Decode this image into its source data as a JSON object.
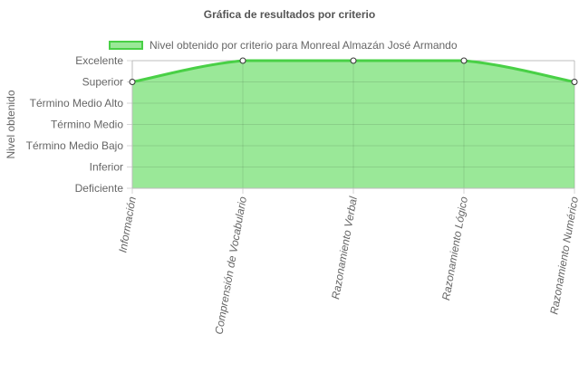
{
  "chart_data": {
    "type": "area",
    "title": "Gráfica de resultados por criterio",
    "ylabel": "Nivel obtenido",
    "xlabel": "",
    "categories": [
      "Información",
      "Comprensión de Vocabulario",
      "Razonamiento Verbal",
      "Razonamiento Lógico",
      "Razonamiento Numérico"
    ],
    "y_levels": [
      "Deficiente",
      "Inferior",
      "Término Medio Bajo",
      "Término Medio",
      "Término Medio Alto",
      "Superior",
      "Excelente"
    ],
    "ylim": [
      0,
      6
    ],
    "grid": true,
    "legend_position": "top",
    "series": [
      {
        "name": "Nivel obtenido por criterio para Monreal Almazán José Armando",
        "values": [
          5,
          6,
          6,
          6,
          5
        ],
        "value_labels": [
          "Superior",
          "Excelente",
          "Excelente",
          "Excelente",
          "Superior"
        ]
      }
    ],
    "colors": {
      "fill": "#9ae898",
      "line": "#49d046",
      "grid": "#d5d5d5",
      "point_fill": "#ffffff",
      "point_stroke": "#333333"
    }
  }
}
